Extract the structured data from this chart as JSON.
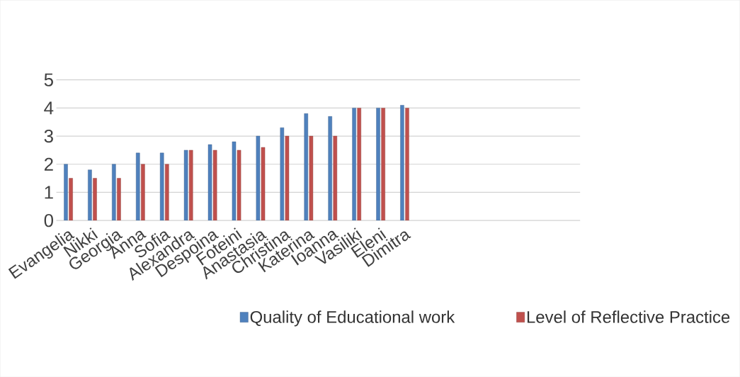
{
  "chart_data": {
    "type": "bar",
    "categories": [
      "Evangelia",
      "Nikki",
      "Georgia",
      "Anna",
      "Sofia",
      "Alexandra",
      "Despoina",
      "Foteini",
      "Anastasia",
      "Christina",
      "Katerina",
      "Ioanna",
      "Vasiliki",
      "Eleni",
      "Dimitra"
    ],
    "series": [
      {
        "name": "Quality of Educational work",
        "color": "#4f81bd",
        "values": [
          2.0,
          1.8,
          2.0,
          2.4,
          2.4,
          2.5,
          2.7,
          2.8,
          3.0,
          3.3,
          3.8,
          3.7,
          4.0,
          4.0,
          4.1
        ]
      },
      {
        "name": "Level of Reflective Practice",
        "color": "#c0504d",
        "values": [
          1.5,
          1.5,
          1.5,
          2.0,
          2.0,
          2.5,
          2.5,
          2.5,
          2.6,
          3.0,
          3.0,
          3.0,
          4.0,
          4.0,
          4.0
        ]
      }
    ],
    "ylim": [
      0,
      5
    ],
    "yticks": [
      0,
      1,
      2,
      3,
      4,
      5
    ],
    "grid": "y",
    "legend": "bottom"
  }
}
